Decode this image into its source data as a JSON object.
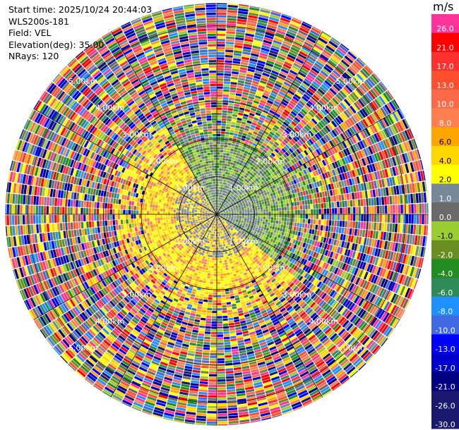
{
  "header": {
    "start_time": "Start time: 2025/10/24 20:44:03",
    "station": "WLS200s-181",
    "field": "Field: VEL",
    "elevation": "Elevation(deg): 35.00",
    "nrays": "NRays: 120"
  },
  "colorbar": {
    "title": "m/s",
    "bins": [
      {
        "label": "26.0",
        "color": "#ff3399"
      },
      {
        "label": "21.0",
        "color": "#ff0000"
      },
      {
        "label": "17.0",
        "color": "#ff3030"
      },
      {
        "label": "13.0",
        "color": "#ff4f2f"
      },
      {
        "label": "10.0",
        "color": "#fa6a4a"
      },
      {
        "label": "8.0",
        "color": "#ff7f50"
      },
      {
        "label": "6.0",
        "color": "#ffa500"
      },
      {
        "label": "4.0",
        "color": "#ffd700"
      },
      {
        "label": "2.0",
        "color": "#ffff00"
      },
      {
        "label": "1.0",
        "color": "#778899"
      },
      {
        "label": "0.0",
        "color": "#696969"
      },
      {
        "label": "-1.0",
        "color": "#9acd32"
      },
      {
        "label": "-2.0",
        "color": "#6b8e23"
      },
      {
        "label": "-4.0",
        "color": "#228b22"
      },
      {
        "label": "-6.0",
        "color": "#2e8b57"
      },
      {
        "label": "-8.0",
        "color": "#1e90ff"
      },
      {
        "label": "-10.0",
        "color": "#4169e1"
      },
      {
        "label": "-13.0",
        "color": "#0000ff"
      },
      {
        "label": "-17.0",
        "color": "#0000cd"
      },
      {
        "label": "-21.0",
        "color": "#000080"
      },
      {
        "label": "-26.0",
        "color": "#191970"
      },
      {
        "label": "-30.0",
        "color": ""
      }
    ]
  },
  "chart_data": {
    "type": "heatmap",
    "field": "VEL",
    "projection": "polar PPI",
    "nrays": 120,
    "elevation_deg": 35.0,
    "range_ring_labels": [
      "1.00km",
      "2.00km",
      "3.00km",
      "4.00km",
      "5.00km"
    ],
    "range_rings_km": [
      1,
      2,
      3,
      4,
      5
    ],
    "max_range_km": 5.6,
    "azimuth_gridlines_deg": [
      0,
      30,
      60,
      90,
      120,
      150,
      180,
      210,
      240,
      270,
      300,
      330
    ],
    "gate_spacing_km": 0.07,
    "velocity_pattern": {
      "near_range_km": 2.0,
      "near_range_negative_sector_deg": [
        330,
        130
      ],
      "near_range_positive_sector_deg": [
        130,
        330
      ],
      "far_range": "noise (random values across full scale)"
    },
    "value_range": [
      -30,
      26
    ]
  }
}
